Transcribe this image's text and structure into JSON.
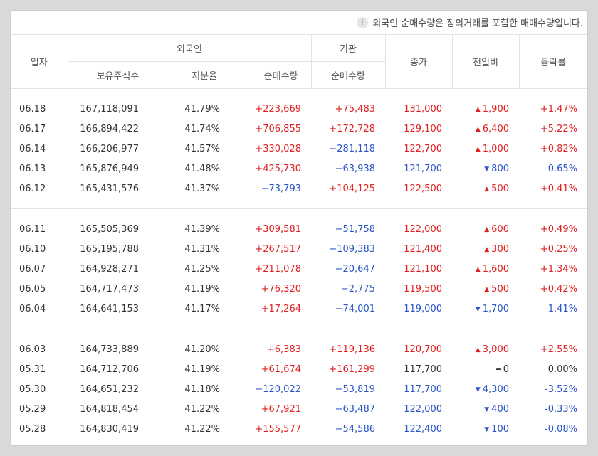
{
  "notice": {
    "icon": "info-icon",
    "text": "외국인 순매수량은 장외거래를 포함한 매매수량입니다."
  },
  "headers": {
    "date": "일자",
    "foreign": "외국인",
    "institution": "기관",
    "holdings": "보유주식수",
    "ratio": "지분율",
    "foreign_net": "순매수량",
    "inst_net": "순매수량",
    "close": "종가",
    "change": "전일비",
    "rate": "등락률"
  },
  "colors": {
    "up": "#e02020",
    "down": "#2b56c7"
  },
  "groups": [
    [
      {
        "date": "06.18",
        "holdings": "167,118,091",
        "ratio": "41.79%",
        "fnet": "+223,669",
        "fdir": "up",
        "inet": "+75,483",
        "idir": "up",
        "close": "131,000",
        "cdir": "up",
        "change": "1,900",
        "chdir": "up",
        "rate": "+1.47%",
        "rdir": "up"
      },
      {
        "date": "06.17",
        "holdings": "166,894,422",
        "ratio": "41.74%",
        "fnet": "+706,855",
        "fdir": "up",
        "inet": "+172,728",
        "idir": "up",
        "close": "129,100",
        "cdir": "up",
        "change": "6,400",
        "chdir": "up",
        "rate": "+5.22%",
        "rdir": "up"
      },
      {
        "date": "06.14",
        "holdings": "166,206,977",
        "ratio": "41.57%",
        "fnet": "+330,028",
        "fdir": "up",
        "inet": "−281,118",
        "idir": "down",
        "close": "122,700",
        "cdir": "up",
        "change": "1,000",
        "chdir": "up",
        "rate": "+0.82%",
        "rdir": "up"
      },
      {
        "date": "06.13",
        "holdings": "165,876,949",
        "ratio": "41.48%",
        "fnet": "+425,730",
        "fdir": "up",
        "inet": "−63,938",
        "idir": "down",
        "close": "121,700",
        "cdir": "down",
        "change": "800",
        "chdir": "down",
        "rate": "-0.65%",
        "rdir": "down"
      },
      {
        "date": "06.12",
        "holdings": "165,431,576",
        "ratio": "41.37%",
        "fnet": "−73,793",
        "fdir": "down",
        "inet": "+104,125",
        "idir": "up",
        "close": "122,500",
        "cdir": "up",
        "change": "500",
        "chdir": "up",
        "rate": "+0.41%",
        "rdir": "up"
      }
    ],
    [
      {
        "date": "06.11",
        "holdings": "165,505,369",
        "ratio": "41.39%",
        "fnet": "+309,581",
        "fdir": "up",
        "inet": "−51,758",
        "idir": "down",
        "close": "122,000",
        "cdir": "up",
        "change": "600",
        "chdir": "up",
        "rate": "+0.49%",
        "rdir": "up"
      },
      {
        "date": "06.10",
        "holdings": "165,195,788",
        "ratio": "41.31%",
        "fnet": "+267,517",
        "fdir": "up",
        "inet": "−109,383",
        "idir": "down",
        "close": "121,400",
        "cdir": "up",
        "change": "300",
        "chdir": "up",
        "rate": "+0.25%",
        "rdir": "up"
      },
      {
        "date": "06.07",
        "holdings": "164,928,271",
        "ratio": "41.25%",
        "fnet": "+211,078",
        "fdir": "up",
        "inet": "−20,647",
        "idir": "down",
        "close": "121,100",
        "cdir": "up",
        "change": "1,600",
        "chdir": "up",
        "rate": "+1.34%",
        "rdir": "up"
      },
      {
        "date": "06.05",
        "holdings": "164,717,473",
        "ratio": "41.19%",
        "fnet": "+76,320",
        "fdir": "up",
        "inet": "−2,775",
        "idir": "down",
        "close": "119,500",
        "cdir": "up",
        "change": "500",
        "chdir": "up",
        "rate": "+0.42%",
        "rdir": "up"
      },
      {
        "date": "06.04",
        "holdings": "164,641,153",
        "ratio": "41.17%",
        "fnet": "+17,264",
        "fdir": "up",
        "inet": "−74,001",
        "idir": "down",
        "close": "119,000",
        "cdir": "down",
        "change": "1,700",
        "chdir": "down",
        "rate": "-1.41%",
        "rdir": "down"
      }
    ],
    [
      {
        "date": "06.03",
        "holdings": "164,733,889",
        "ratio": "41.20%",
        "fnet": "+6,383",
        "fdir": "up",
        "inet": "+119,136",
        "idir": "up",
        "close": "120,700",
        "cdir": "up",
        "change": "3,000",
        "chdir": "up",
        "rate": "+2.55%",
        "rdir": "up"
      },
      {
        "date": "05.31",
        "holdings": "164,712,706",
        "ratio": "41.19%",
        "fnet": "+61,674",
        "fdir": "up",
        "inet": "+161,299",
        "idir": "up",
        "close": "117,700",
        "cdir": "flat",
        "change": "0",
        "chdir": "flat",
        "rate": "0.00%",
        "rdir": "flat"
      },
      {
        "date": "05.30",
        "holdings": "164,651,232",
        "ratio": "41.18%",
        "fnet": "−120,022",
        "fdir": "down",
        "inet": "−53,819",
        "idir": "down",
        "close": "117,700",
        "cdir": "down",
        "change": "4,300",
        "chdir": "down",
        "rate": "-3.52%",
        "rdir": "down"
      },
      {
        "date": "05.29",
        "holdings": "164,818,454",
        "ratio": "41.22%",
        "fnet": "+67,921",
        "fdir": "up",
        "inet": "−63,487",
        "idir": "down",
        "close": "122,000",
        "cdir": "down",
        "change": "400",
        "chdir": "down",
        "rate": "-0.33%",
        "rdir": "down"
      },
      {
        "date": "05.28",
        "holdings": "164,830,419",
        "ratio": "41.22%",
        "fnet": "+155,577",
        "fdir": "up",
        "inet": "−54,586",
        "idir": "down",
        "close": "122,400",
        "cdir": "down",
        "change": "100",
        "chdir": "down",
        "rate": "-0.08%",
        "rdir": "down"
      }
    ]
  ]
}
